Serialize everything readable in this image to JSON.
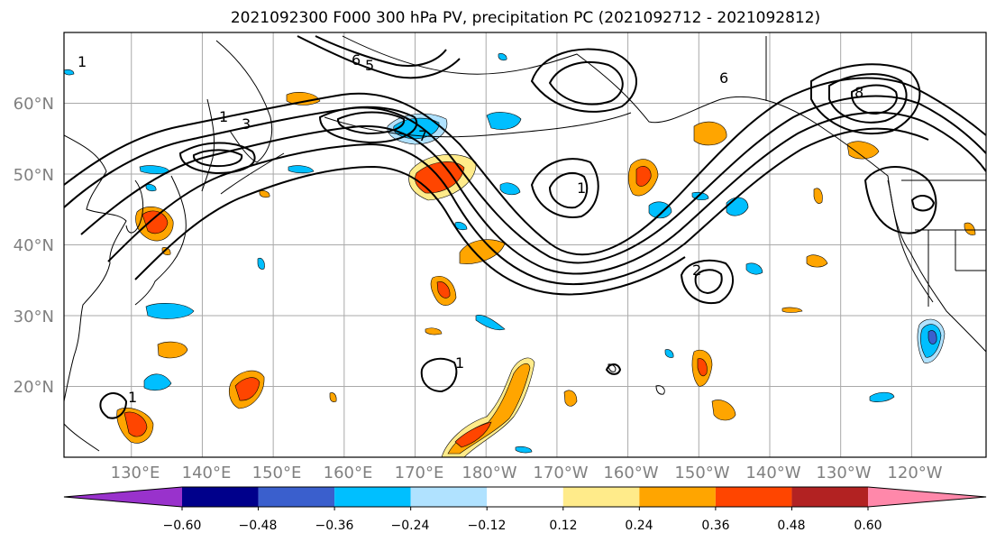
{
  "map": {
    "title": "2021092300 F000 300 hPa PV, precipitation PC (2021092712 - 2021092812)",
    "lat_labels": [
      "60°N",
      "50°N",
      "40°N",
      "30°N",
      "20°N"
    ],
    "lat_values": [
      60,
      50,
      40,
      30,
      20
    ],
    "lon_labels": [
      "130°E",
      "140°E",
      "150°E",
      "160°E",
      "170°E",
      "180°W",
      "170°W",
      "160°W",
      "150°W",
      "140°W",
      "130°W",
      "120°W"
    ],
    "lon_values": [
      130,
      140,
      150,
      160,
      170,
      180,
      190,
      200,
      210,
      220,
      230,
      240
    ],
    "extent": {
      "lon_min": 120.5,
      "lon_max": 250.5,
      "lat_min": 10,
      "lat_max": 70
    },
    "pv_contour_labels": [
      "1",
      "3",
      "5",
      "6",
      "7",
      "8",
      "2"
    ],
    "grid": true
  },
  "colorbar": {
    "tick_labels": [
      "−0.60",
      "−0.48",
      "−0.36",
      "−0.24",
      "−0.12",
      "0.12",
      "0.24",
      "0.36",
      "0.48",
      "0.60"
    ],
    "bounds": [
      -0.6,
      -0.48,
      -0.36,
      -0.24,
      -0.12,
      0.12,
      0.24,
      0.36,
      0.48,
      0.6
    ],
    "colors": [
      "#9932cc",
      "#00008b",
      "#3a5fcd",
      "#00bfff",
      "#b0e2ff",
      "#ffffff",
      "#ffeb8a",
      "#ffa500",
      "#ff4500",
      "#b22222",
      "#ff88aa"
    ],
    "extend": "both"
  }
}
